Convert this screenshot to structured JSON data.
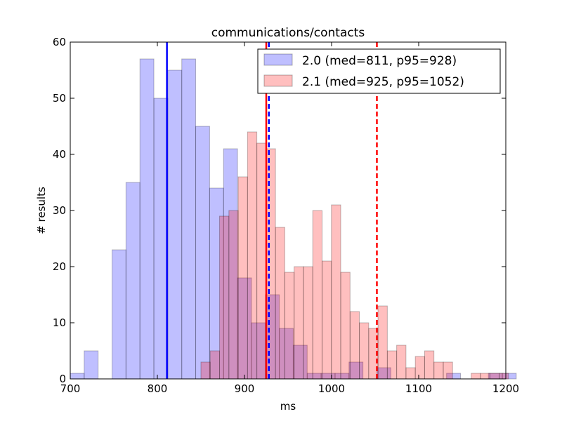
{
  "chart_data": {
    "type": "bar",
    "title": "communications/contacts",
    "xlabel": "ms",
    "ylabel": "# results",
    "xlim": [
      700,
      1200
    ],
    "ylim": [
      0,
      60
    ],
    "xticks": [
      700,
      800,
      900,
      1000,
      1100,
      1200
    ],
    "yticks": [
      0,
      10,
      20,
      30,
      40,
      50,
      60
    ],
    "legend_position": "top-right",
    "series": [
      {
        "name": "2.0 (med=811, p95=928)",
        "color": "#0000ff",
        "median": 811,
        "p95": 928,
        "bin_width": 16,
        "bin_start": 700,
        "counts": [
          1,
          5,
          0,
          23,
          35,
          57,
          50,
          55,
          57,
          45,
          34,
          41,
          18,
          10,
          15,
          9,
          6,
          1,
          1,
          1,
          3,
          0,
          2,
          0,
          0,
          0,
          0,
          1,
          0,
          0,
          1,
          1
        ]
      },
      {
        "name": "2.1 (med=925, p95=1052)",
        "color": "#ff0000",
        "median": 925,
        "p95": 1052,
        "bin_width": 10.7,
        "bin_start": 850,
        "counts": [
          3,
          5,
          29,
          30,
          36,
          44,
          42,
          41,
          27,
          19,
          20,
          20,
          30,
          21,
          31,
          19,
          12,
          10,
          9,
          13,
          5,
          6,
          2,
          4,
          5,
          3,
          3,
          0,
          0,
          1,
          1,
          1,
          1
        ]
      }
    ]
  }
}
